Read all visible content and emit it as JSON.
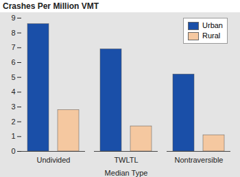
{
  "chart_data": {
    "type": "bar",
    "ylabel": "Crashes Per Million VMT",
    "xlabel": "Median Type",
    "categories": [
      "Undivided",
      "TWLTL",
      "Nontraversible"
    ],
    "series": [
      {
        "name": "Urban",
        "color": "#1a4fa8",
        "values": [
          8.6,
          6.9,
          5.2
        ]
      },
      {
        "name": "Rural",
        "color": "#f5c8a0",
        "values": [
          2.8,
          1.7,
          1.1
        ]
      }
    ],
    "ylim": [
      0,
      9
    ],
    "yticks": [
      0,
      1,
      2,
      3,
      4,
      5,
      6,
      7,
      8,
      9
    ],
    "grid": false,
    "legend": "top-right"
  }
}
